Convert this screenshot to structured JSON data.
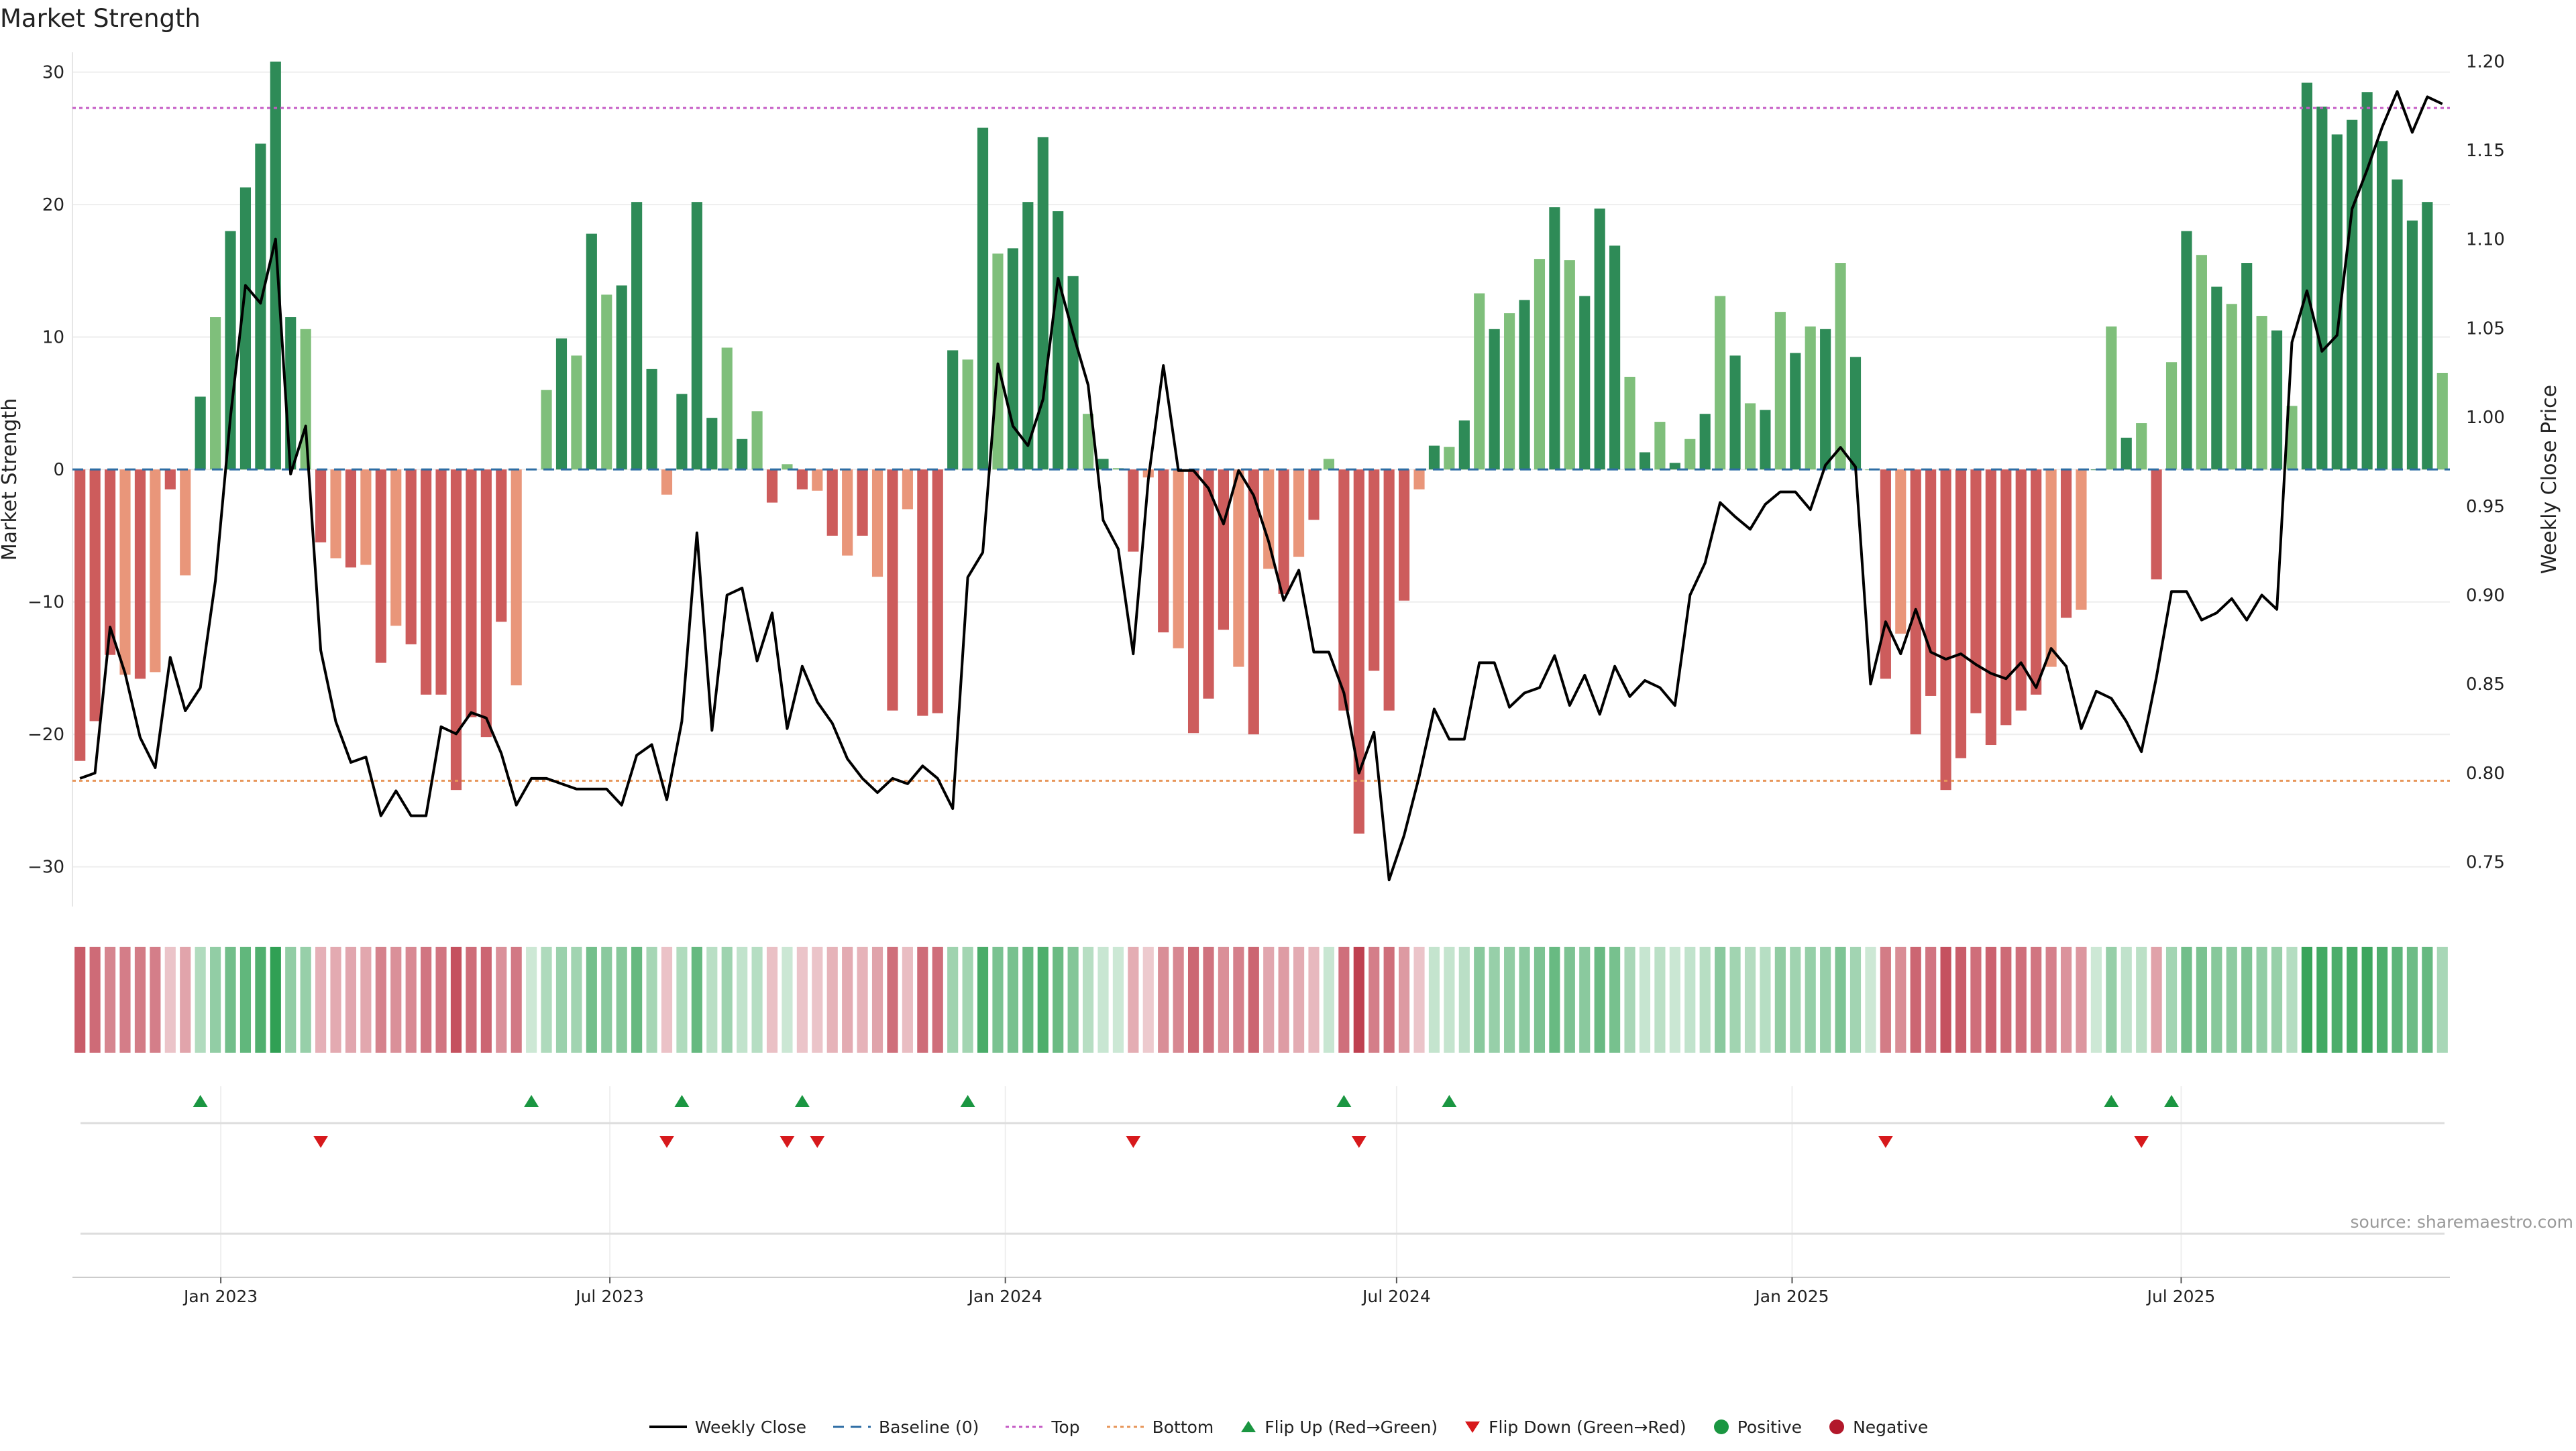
{
  "title": "Market Strength",
  "source": "source: sharemaestro.com",
  "chart_data": {
    "type": "bar",
    "title": "Market Strength",
    "ylabel_left": "Market Strength",
    "ylabel_right": "Weekly Close Price",
    "ylim_left": [
      -33,
      31.5
    ],
    "ylim_right": [
      0.725,
      1.205
    ],
    "yticks_left": [
      "30",
      "20",
      "10",
      "0",
      "−10",
      "−20",
      "−30"
    ],
    "yticks_left_values": [
      30,
      20,
      10,
      0,
      -10,
      -20,
      -30
    ],
    "yticks_right": [
      "1.20",
      "1.15",
      "1.10",
      "1.05",
      "1.00",
      "0.95",
      "0.90",
      "0.85",
      "0.80",
      "0.75"
    ],
    "yticks_right_values": [
      1.2,
      1.15,
      1.1,
      1.05,
      1.0,
      0.95,
      0.9,
      0.85,
      0.8,
      0.75
    ],
    "x_start_date": "2022-10-24",
    "x_step_days": 7,
    "xticks": [
      {
        "label": "Jan 2023",
        "date": "2023-01-01"
      },
      {
        "label": "Jul 2023",
        "date": "2023-07-01"
      },
      {
        "label": "Jan 2024",
        "date": "2024-01-01"
      },
      {
        "label": "Jul 2024",
        "date": "2024-07-01"
      },
      {
        "label": "Jan 2025",
        "date": "2025-01-01"
      },
      {
        "label": "Jul 2025",
        "date": "2025-07-01"
      }
    ],
    "top_line": 27.3,
    "bottom_line": -23.5,
    "strength": [
      -22,
      -19,
      -14,
      -15.5,
      -15.8,
      -15.3,
      -1.5,
      -8,
      5.5,
      11.5,
      18,
      21.3,
      24.6,
      30.8,
      11.5,
      10.6,
      -5.5,
      -6.7,
      -7.4,
      -7.2,
      -14.6,
      -11.8,
      -13.2,
      -17,
      -17,
      -24.2,
      -18.7,
      -20.2,
      -11.5,
      -16.3,
      0,
      6,
      9.9,
      8.6,
      17.8,
      13.2,
      13.9,
      20.2,
      7.6,
      -1.9,
      5.7,
      20.2,
      3.9,
      9.2,
      2.3,
      4.4,
      -2.5,
      0.4,
      -1.5,
      -1.6,
      -5,
      -6.5,
      -5,
      -8.1,
      -18.2,
      -3,
      -18.6,
      -18.4,
      9,
      8.3,
      25.8,
      16.3,
      16.7,
      20.2,
      25.1,
      19.5,
      14.6,
      4.2,
      0.8,
      0.1,
      -6.2,
      -0.6,
      -12.3,
      -13.5,
      -19.9,
      -17.3,
      -12.1,
      -14.9,
      -20,
      -7.5,
      -9.4,
      -6.6,
      -3.8,
      0.8,
      -18.2,
      -27.5,
      -15.2,
      -18.2,
      -9.9,
      -1.5,
      1.8,
      1.7,
      3.7,
      13.3,
      10.6,
      11.8,
      12.8,
      15.9,
      19.8,
      15.8,
      13.1,
      19.7,
      16.9,
      7,
      1.3,
      3.6,
      0.5,
      2.3,
      4.2,
      13.1,
      8.6,
      5,
      4.5,
      11.9,
      8.8,
      10.8,
      10.6,
      15.6,
      8.5,
      0,
      -15.8,
      -12.4,
      -20,
      -17.1,
      -24.2,
      -21.8,
      -18.4,
      -20.8,
      -19.3,
      -18.2,
      -17,
      -14.9,
      -11.2,
      -10.6,
      0,
      10.8,
      2.4,
      3.5,
      -8.3,
      8.1,
      18,
      16.2,
      13.8,
      12.5,
      15.6,
      11.6,
      10.5,
      4.8,
      29.2,
      27.4,
      25.3,
      26.4,
      28.5,
      24.8,
      21.9,
      18.8,
      20.2,
      7.3
    ],
    "close": [
      0.797,
      0.8,
      0.882,
      0.856,
      0.82,
      0.803,
      0.865,
      0.835,
      0.848,
      0.908,
      1.0,
      1.074,
      1.064,
      1.1,
      0.968,
      0.995,
      0.869,
      0.829,
      0.806,
      0.809,
      0.776,
      0.79,
      0.776,
      0.776,
      0.826,
      0.822,
      0.834,
      0.831,
      0.811,
      0.782,
      0.797,
      0.797,
      0.794,
      0.791,
      0.791,
      0.791,
      0.782,
      0.81,
      0.816,
      0.785,
      0.829,
      0.935,
      0.824,
      0.9,
      0.904,
      0.863,
      0.89,
      0.825,
      0.86,
      0.84,
      0.828,
      0.808,
      0.797,
      0.789,
      0.797,
      0.794,
      0.804,
      0.797,
      0.78,
      0.91,
      0.924,
      1.03,
      0.995,
      0.984,
      1.01,
      1.078,
      1.047,
      1.018,
      0.942,
      0.926,
      0.867,
      0.965,
      1.029,
      0.97,
      0.97,
      0.96,
      0.94,
      0.97,
      0.956,
      0.93,
      0.897,
      0.914,
      0.868,
      0.868,
      0.845,
      0.8,
      0.823,
      0.74,
      0.765,
      0.798,
      0.836,
      0.819,
      0.819,
      0.862,
      0.862,
      0.837,
      0.845,
      0.848,
      0.866,
      0.838,
      0.855,
      0.833,
      0.86,
      0.843,
      0.852,
      0.848,
      0.838,
      0.9,
      0.918,
      0.952,
      0.944,
      0.937,
      0.951,
      0.958,
      0.958,
      0.948,
      0.973,
      0.983,
      0.972,
      0.85,
      0.885,
      0.867,
      0.892,
      0.868,
      0.864,
      0.867,
      0.861,
      0.856,
      0.853,
      0.862,
      0.848,
      0.87,
      0.86,
      0.825,
      0.846,
      0.842,
      0.829,
      0.812,
      0.854,
      0.902,
      0.902,
      0.886,
      0.89,
      0.898,
      0.886,
      0.9,
      0.892,
      1.042,
      1.071,
      1.037,
      1.046,
      1.117,
      1.139,
      1.163,
      1.183,
      1.16,
      1.18,
      1.176
    ],
    "flip_up_weeks": [
      8,
      30,
      40,
      48,
      59,
      84,
      91,
      135,
      139
    ],
    "flip_down_weeks": [
      16,
      39,
      47,
      49,
      70,
      85,
      120,
      137
    ],
    "legend": [
      {
        "label": "Weekly Close",
        "kind": "line",
        "color": "#000000"
      },
      {
        "label": "Baseline (0)",
        "kind": "dash",
        "color": "#2e6da4"
      },
      {
        "label": "Top",
        "kind": "dotted",
        "color": "#c55bc5"
      },
      {
        "label": "Bottom",
        "kind": "dotted",
        "color": "#e8965a"
      },
      {
        "label": "Flip Up (Red→Green)",
        "kind": "tri-up",
        "color": "#1a9641"
      },
      {
        "label": "Flip Down (Green→Red)",
        "kind": "tri-down",
        "color": "#d7191c"
      },
      {
        "label": "Positive",
        "kind": "dot",
        "color": "#1a9641"
      },
      {
        "label": "Negative",
        "kind": "dot",
        "color": "#b2182b"
      }
    ],
    "colors": {
      "pos_strong": "#2e8b57",
      "pos_light": "#7fbf7b",
      "neg_strong": "#cd5c5c",
      "neg_light": "#e9967a",
      "price_line": "#000000",
      "baseline": "#2e6da4",
      "top_line": "#c55bc5",
      "bottom_line": "#e8965a"
    }
  }
}
